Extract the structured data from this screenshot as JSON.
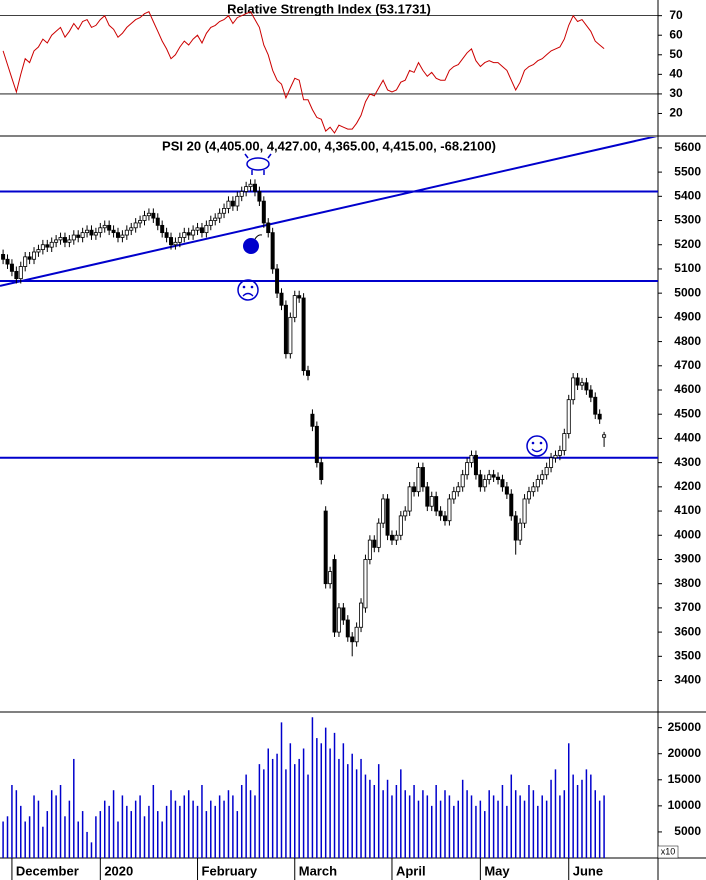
{
  "chart_data": [
    {
      "type": "line",
      "title": "Relative Strength Index (53.1731)",
      "color": "#cc0000",
      "ylim": [
        9,
        78
      ],
      "yticks": [
        70,
        60,
        50,
        40,
        30,
        20
      ],
      "hlines": [
        70,
        30
      ],
      "values": [
        52,
        45,
        38,
        31,
        40,
        48,
        46,
        52,
        54,
        58,
        56,
        60,
        62,
        64,
        59,
        62,
        66,
        63,
        67,
        68,
        64,
        65,
        68,
        70,
        65,
        63,
        59,
        61,
        64,
        66,
        68,
        69,
        71,
        72,
        67,
        62,
        57,
        53,
        48,
        50,
        54,
        57,
        55,
        58,
        60,
        56,
        61,
        64,
        65,
        67,
        68,
        70,
        66,
        69,
        70,
        71,
        72,
        68,
        64,
        55,
        50,
        42,
        37,
        35,
        28,
        33,
        38,
        37,
        27,
        27,
        22,
        18,
        17,
        11,
        13,
        10,
        14,
        13,
        12,
        12,
        15,
        19,
        26,
        30,
        29,
        33,
        37,
        32,
        31,
        32,
        36,
        37,
        42,
        41,
        46,
        42,
        39,
        41,
        38,
        37,
        37,
        42,
        44,
        45,
        48,
        51,
        53,
        47,
        44,
        46,
        47,
        46,
        46,
        44,
        42,
        37,
        32,
        36,
        42,
        44,
        45,
        47,
        48,
        50,
        52,
        53,
        54,
        58,
        65,
        70,
        67,
        68,
        65,
        62,
        57,
        55,
        53.1731
      ]
    },
    {
      "type": "candlestick",
      "title": "PSI 20 (4,405.00, 4,427.00, 4,365.00, 4,415.00, -68.2100)",
      "up_color": "#ffffff",
      "down_color": "#000000",
      "line_color": "#0000cc",
      "ylim": [
        3270,
        5645
      ],
      "yticks": [
        5600,
        5500,
        5400,
        5300,
        5200,
        5100,
        5000,
        4900,
        4800,
        4700,
        4600,
        4500,
        4400,
        4300,
        4200,
        4100,
        4000,
        3900,
        3800,
        3700,
        3600,
        3500,
        3400
      ],
      "hlines": [
        5420,
        5050,
        4320
      ],
      "trendline": {
        "x": [
          -0.7,
          148.2
        ],
        "y": [
          5030,
          5650
        ]
      },
      "open": [
        5160,
        5140,
        5120,
        5090,
        5060,
        5110,
        5150,
        5140,
        5170,
        5180,
        5200,
        5190,
        5210,
        5220,
        5230,
        5210,
        5220,
        5240,
        5230,
        5250,
        5260,
        5240,
        5250,
        5270,
        5280,
        5260,
        5250,
        5230,
        5240,
        5260,
        5270,
        5290,
        5300,
        5320,
        5330,
        5310,
        5280,
        5250,
        5230,
        5200,
        5210,
        5230,
        5250,
        5240,
        5260,
        5270,
        5250,
        5280,
        5300,
        5310,
        5330,
        5350,
        5380,
        5360,
        5400,
        5420,
        5440,
        5450,
        5420,
        5380,
        5290,
        5250,
        5100,
        5000,
        4950,
        4750,
        4900,
        4990,
        4980,
        4680,
        4500,
        4450,
        4300,
        4100,
        3800,
        3900,
        3600,
        3700,
        3650,
        3580,
        3560,
        3620,
        3700,
        3900,
        3980,
        3950,
        4050,
        4150,
        4000,
        3980,
        4000,
        4080,
        4100,
        4200,
        4180,
        4280,
        4200,
        4120,
        4160,
        4100,
        4080,
        4060,
        4150,
        4180,
        4200,
        4250,
        4300,
        4330,
        4250,
        4200,
        4230,
        4250,
        4240,
        4230,
        4200,
        4170,
        4080,
        3980,
        4050,
        4150,
        4180,
        4200,
        4230,
        4250,
        4280,
        4320,
        4330,
        4350,
        4420,
        4560,
        4650,
        4620,
        4630,
        4600,
        4570,
        4500,
        4405
      ],
      "high": [
        5180,
        5160,
        5140,
        5110,
        5130,
        5170,
        5170,
        5190,
        5200,
        5220,
        5220,
        5230,
        5240,
        5250,
        5250,
        5240,
        5260,
        5260,
        5270,
        5280,
        5280,
        5270,
        5290,
        5300,
        5300,
        5280,
        5270,
        5260,
        5280,
        5290,
        5310,
        5320,
        5340,
        5350,
        5350,
        5330,
        5300,
        5270,
        5250,
        5230,
        5250,
        5270,
        5270,
        5280,
        5290,
        5290,
        5300,
        5320,
        5330,
        5350,
        5370,
        5400,
        5400,
        5420,
        5440,
        5460,
        5470,
        5470,
        5440,
        5400,
        5310,
        5270,
        5120,
        5020,
        4970,
        4920,
        5010,
        5010,
        5000,
        4700,
        4520,
        4470,
        4320,
        4120,
        3870,
        3920,
        3720,
        3720,
        3670,
        3600,
        3640,
        3740,
        3920,
        4000,
        4000,
        4070,
        4170,
        4170,
        4020,
        4020,
        4100,
        4120,
        4220,
        4220,
        4300,
        4300,
        4220,
        4180,
        4180,
        4120,
        4100,
        4170,
        4200,
        4220,
        4270,
        4320,
        4350,
        4350,
        4270,
        4250,
        4270,
        4270,
        4260,
        4250,
        4220,
        4190,
        4100,
        4070,
        4170,
        4200,
        4220,
        4250,
        4270,
        4300,
        4340,
        4350,
        4370,
        4440,
        4580,
        4670,
        4670,
        4650,
        4650,
        4620,
        4590,
        4520,
        4427
      ],
      "low": [
        5120,
        5100,
        5070,
        5040,
        5040,
        5090,
        5120,
        5120,
        5150,
        5160,
        5170,
        5170,
        5190,
        5200,
        5190,
        5190,
        5200,
        5210,
        5210,
        5230,
        5220,
        5220,
        5230,
        5250,
        5240,
        5230,
        5210,
        5210,
        5220,
        5240,
        5250,
        5270,
        5280,
        5300,
        5290,
        5260,
        5230,
        5210,
        5180,
        5180,
        5190,
        5210,
        5220,
        5220,
        5240,
        5230,
        5230,
        5260,
        5280,
        5290,
        5310,
        5330,
        5340,
        5340,
        5380,
        5400,
        5420,
        5400,
        5360,
        5270,
        5230,
        5080,
        4980,
        4930,
        4730,
        4730,
        4880,
        4960,
        4660,
        4640,
        4430,
        4280,
        4210,
        3780,
        3780,
        3580,
        3580,
        3630,
        3560,
        3500,
        3540,
        3600,
        3680,
        3880,
        3930,
        3930,
        4030,
        3980,
        3960,
        3960,
        3980,
        4060,
        4080,
        4160,
        4160,
        4180,
        4100,
        4100,
        4080,
        4060,
        4040,
        4040,
        4130,
        4160,
        4180,
        4230,
        4280,
        4230,
        4180,
        4180,
        4210,
        4220,
        4210,
        4180,
        4150,
        4060,
        3920,
        3960,
        4030,
        4130,
        4160,
        4180,
        4210,
        4230,
        4260,
        4300,
        4310,
        4330,
        4400,
        4540,
        4600,
        4600,
        4580,
        4550,
        4480,
        4460,
        4365
      ],
      "close": [
        5140,
        5120,
        5090,
        5060,
        5110,
        5150,
        5140,
        5170,
        5180,
        5200,
        5190,
        5210,
        5220,
        5230,
        5210,
        5220,
        5240,
        5230,
        5250,
        5260,
        5240,
        5250,
        5270,
        5280,
        5260,
        5250,
        5230,
        5240,
        5260,
        5270,
        5290,
        5300,
        5320,
        5330,
        5310,
        5280,
        5250,
        5230,
        5200,
        5210,
        5230,
        5250,
        5240,
        5260,
        5270,
        5250,
        5280,
        5300,
        5310,
        5330,
        5350,
        5380,
        5360,
        5400,
        5420,
        5440,
        5450,
        5420,
        5380,
        5290,
        5250,
        5100,
        5000,
        4950,
        4750,
        4900,
        4990,
        4980,
        4680,
        4660,
        4450,
        4300,
        4230,
        3800,
        3850,
        3600,
        3700,
        3650,
        3580,
        3560,
        3620,
        3720,
        3900,
        3980,
        3950,
        4050,
        4150,
        4000,
        3980,
        4000,
        4080,
        4100,
        4200,
        4180,
        4280,
        4200,
        4120,
        4160,
        4100,
        4080,
        4060,
        4150,
        4180,
        4200,
        4250,
        4300,
        4330,
        4250,
        4200,
        4230,
        4250,
        4240,
        4230,
        4200,
        4170,
        4080,
        3980,
        4050,
        4150,
        4180,
        4200,
        4230,
        4250,
        4280,
        4320,
        4330,
        4350,
        4420,
        4560,
        4650,
        4620,
        4630,
        4600,
        4570,
        4500,
        4480,
        4415
      ]
    },
    {
      "type": "bar",
      "color": "#0000cc",
      "ylim": [
        0,
        28000
      ],
      "yticks": [
        25000,
        20000,
        15000,
        10000,
        5000
      ],
      "multiplier_label": "x10",
      "xlim": [
        -0.7,
        148.2
      ],
      "xticks": [
        {
          "value": 2,
          "label": "December"
        },
        {
          "value": 22,
          "label": "2020"
        },
        {
          "value": 44,
          "label": "February"
        },
        {
          "value": 66,
          "label": "March"
        },
        {
          "value": 88,
          "label": "April"
        },
        {
          "value": 108,
          "label": "May"
        },
        {
          "value": 128,
          "label": "June"
        }
      ],
      "values": [
        7000,
        8000,
        14000,
        13000,
        10000,
        7000,
        8000,
        12000,
        11000,
        6000,
        9000,
        13000,
        12000,
        14000,
        8000,
        11000,
        19000,
        7000,
        9000,
        5000,
        3000,
        8000,
        9000,
        11000,
        10000,
        13000,
        7000,
        12000,
        10000,
        9000,
        11000,
        12000,
        8000,
        10000,
        14000,
        9000,
        7000,
        10000,
        13000,
        11000,
        10000,
        12000,
        13000,
        11000,
        10000,
        14000,
        9000,
        11000,
        10000,
        12000,
        11000,
        13000,
        12000,
        9000,
        14000,
        16000,
        13000,
        12000,
        18000,
        17000,
        21000,
        19000,
        20000,
        26000,
        17000,
        22000,
        18000,
        19000,
        21000,
        16000,
        27000,
        23000,
        22000,
        25000,
        21000,
        24000,
        19000,
        22000,
        18000,
        20000,
        17000,
        19000,
        16000,
        15000,
        14000,
        18000,
        13000,
        15000,
        12000,
        14000,
        17000,
        13000,
        12000,
        14000,
        11000,
        13000,
        12000,
        10000,
        14000,
        11000,
        13000,
        12000,
        10000,
        11000,
        15000,
        13000,
        12000,
        10000,
        11000,
        9000,
        13000,
        12000,
        11000,
        14000,
        10000,
        16000,
        13000,
        12000,
        11000,
        14000,
        13000,
        10000,
        12000,
        11000,
        15000,
        17000,
        12000,
        13000,
        22000,
        16000,
        14000,
        15000,
        17000,
        16000,
        13000,
        11000,
        12000
      ]
    }
  ]
}
